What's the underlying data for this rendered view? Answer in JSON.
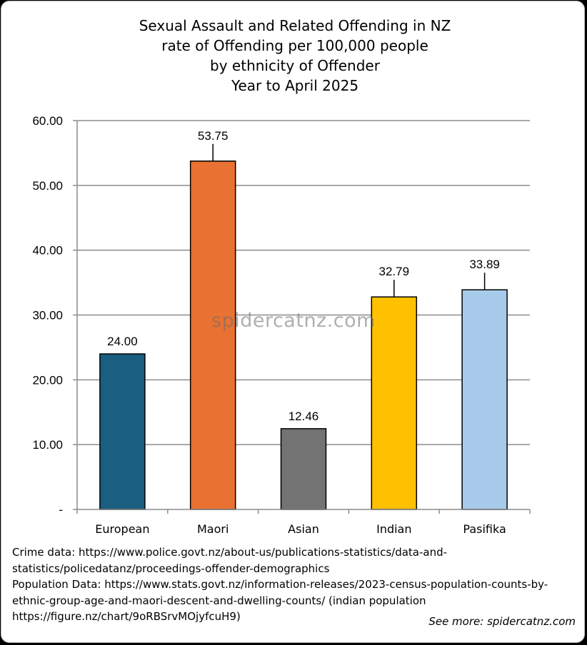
{
  "chart_data": {
    "type": "bar",
    "title": [
      "Sexual Assault and Related Offending in NZ",
      "rate of Offending per 100,000 people",
      "by ethnicity of Offender",
      "Year to April 2025"
    ],
    "categories": [
      "European",
      "Maori",
      "Asian",
      "Indian",
      "Pasifika"
    ],
    "values": [
      24.0,
      53.75,
      12.46,
      32.79,
      33.89
    ],
    "data_labels": [
      "24.00",
      "53.75",
      "12.46",
      "32.79",
      "33.89"
    ],
    "colors": [
      "#1a5e80",
      "#e97132",
      "#737373",
      "#ffc000",
      "#a9cbeb"
    ],
    "ylim": [
      0,
      60
    ],
    "yticks": [
      0,
      10,
      20,
      30,
      40,
      50,
      60
    ],
    "ytick_labels": [
      "-",
      "10.00",
      "20.00",
      "30.00",
      "40.00",
      "50.00",
      "60.00"
    ],
    "grid": true,
    "legend": "none",
    "xlabel": "",
    "ylabel": ""
  },
  "watermark": "spidercatnz.com",
  "sources": [
    "Crime data: https://www.police.govt.nz/about-us/publications-statistics/data-and-",
    "statistics/policedatanz/proceedings-offender-demographics",
    "Population Data: https://www.stats.govt.nz/information-releases/2023-census-population-counts-by-",
    "ethnic-group-age-and-maori-descent-and-dwelling-counts/ (indian population",
    "https://figure.nz/chart/9oRBSrvMOjyfcuH9)"
  ],
  "see_more": "See more: spidercatnz.com"
}
